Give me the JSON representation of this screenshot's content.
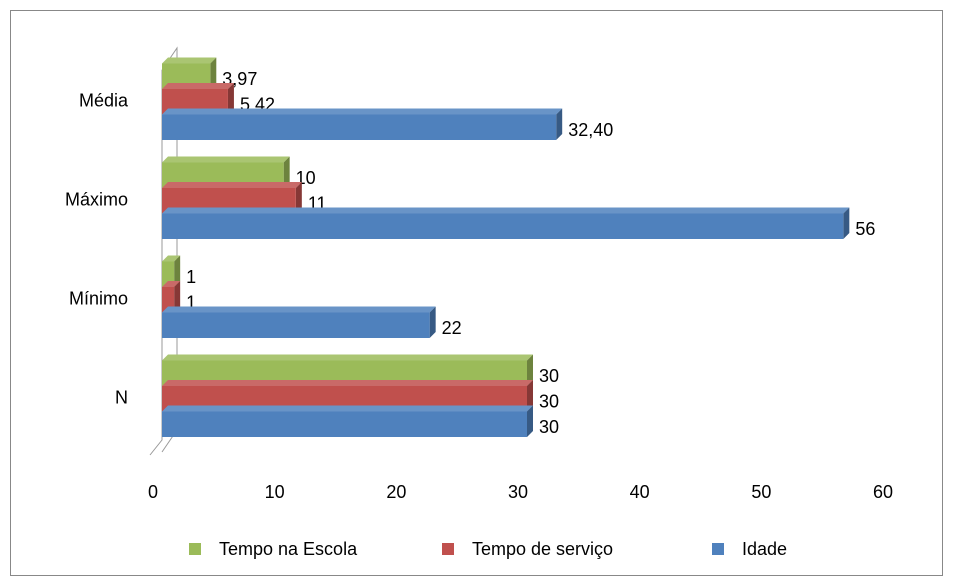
{
  "chart_data": {
    "type": "bar3d_horizontal",
    "categories": [
      "N",
      "Mínimo",
      "Máximo",
      "Média"
    ],
    "series": [
      {
        "name": "Tempo na Escola",
        "color": "#9bbb59",
        "values": [
          30,
          1,
          10,
          3.97
        ],
        "value_labels": [
          "30",
          "1",
          "10",
          "3,97"
        ]
      },
      {
        "name": "Tempo de serviço",
        "color": "#c0504d",
        "values": [
          30,
          1,
          11,
          5.42
        ],
        "value_labels": [
          "30",
          "1",
          "11",
          "5,42"
        ]
      },
      {
        "name": "Idade",
        "color": "#4f81bd",
        "values": [
          30,
          22,
          56,
          32.4
        ],
        "value_labels": [
          "30",
          "22",
          "56",
          "32,40"
        ]
      }
    ],
    "xlim": [
      0,
      60
    ],
    "xticks": [
      0,
      10,
      20,
      30,
      40,
      50,
      60
    ],
    "legend": "bottom"
  }
}
